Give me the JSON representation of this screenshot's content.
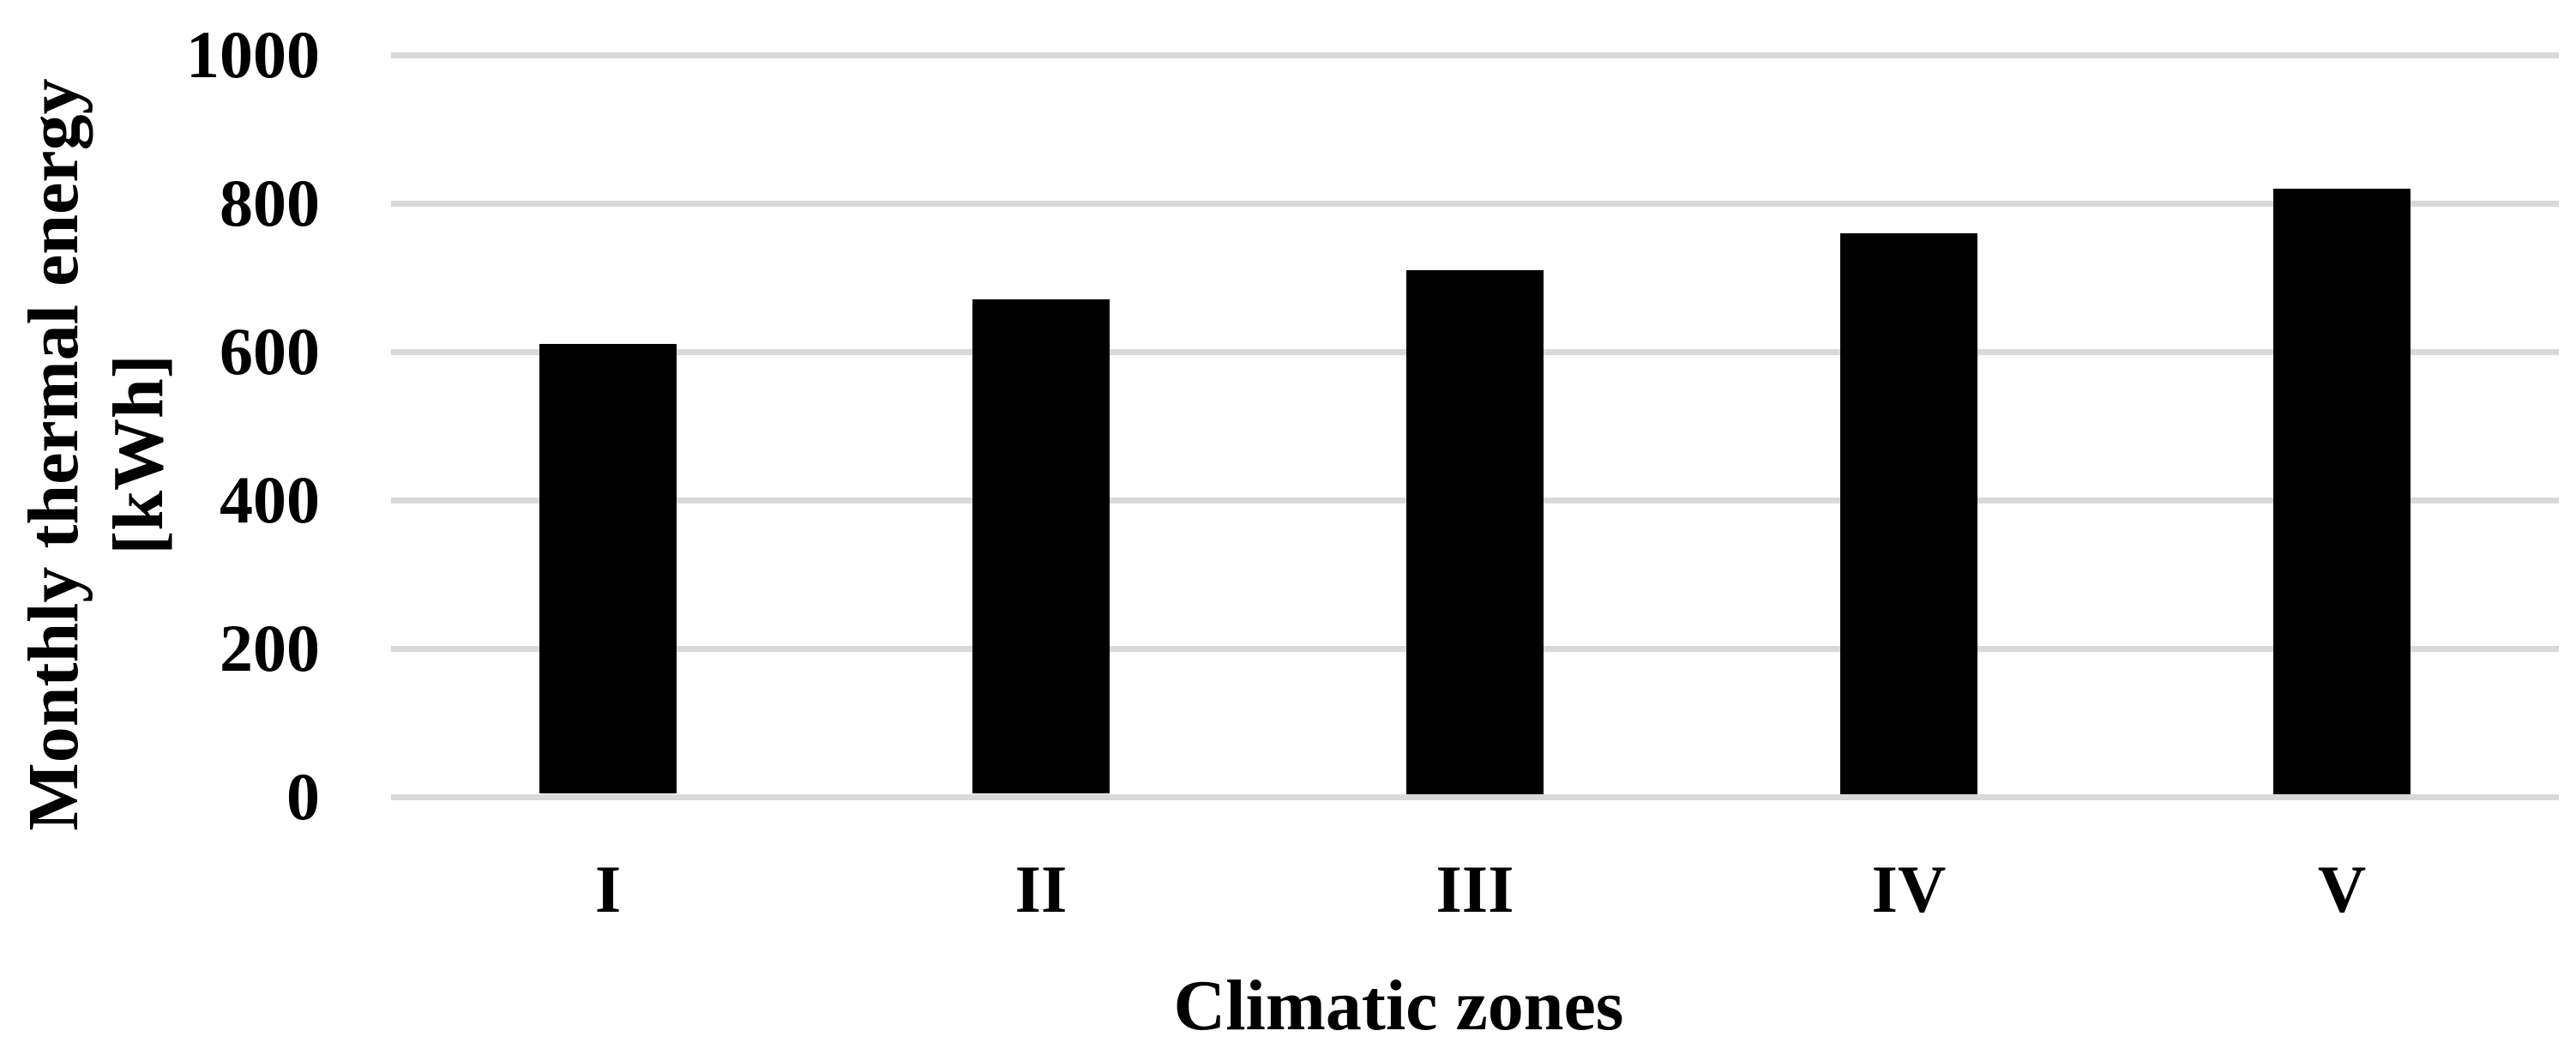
{
  "chart_data": {
    "type": "bar",
    "title": "",
    "categories": [
      "I",
      "II",
      "III",
      "IV",
      "V"
    ],
    "values": [
      610,
      670,
      710,
      760,
      820
    ],
    "series": [
      {
        "name": "Monthly thermal energy",
        "values": [
          610,
          670,
          710,
          760,
          820
        ]
      }
    ],
    "xlabel": "Climatic zones",
    "ylabel": "Monthly thermal energy [kWh]",
    "ylabel_lines": [
      "Monthly thermal energy",
      "[kWh]"
    ],
    "ylim": [
      0,
      1000
    ],
    "yticks": [
      0,
      200,
      400,
      600,
      800,
      1000
    ],
    "grid": true,
    "gridline_orientation": "horizontal",
    "legend_position": "none",
    "bar_color": "#000000",
    "gridline_color": "#d9d9d9",
    "text_color": "#000000",
    "background_color": "#ffffff"
  }
}
